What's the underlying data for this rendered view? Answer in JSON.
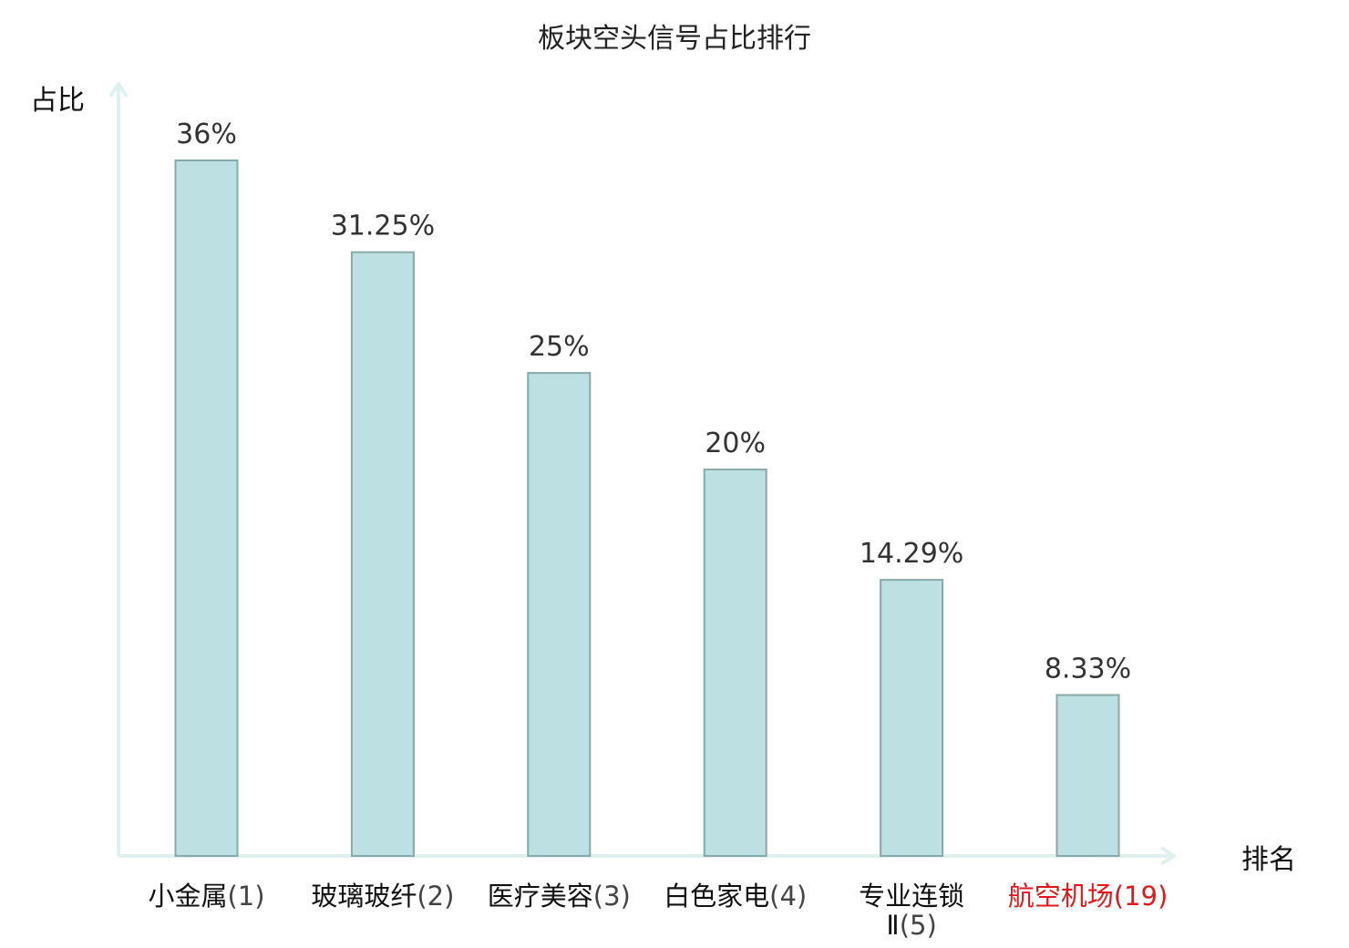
{
  "chart_data": {
    "type": "bar",
    "title": "板块空头信号占比排行",
    "ylabel": "占比",
    "xlabel": "排名",
    "ylim": [
      0,
      40
    ],
    "grid": false,
    "legend": "none",
    "categories": [
      {
        "name": "小金属",
        "rank": "(1)",
        "highlight": false
      },
      {
        "name": "玻璃玻纤",
        "rank": "(2)",
        "highlight": false
      },
      {
        "name": "医疗美容",
        "rank": "(3)",
        "highlight": false
      },
      {
        "name": "白色家电",
        "rank": "(4)",
        "highlight": false
      },
      {
        "name": "专业连锁",
        "name_line2": "Ⅱ",
        "rank": "(5)",
        "highlight": false
      },
      {
        "name": "航空机场",
        "rank": "(19)",
        "highlight": true
      }
    ],
    "values": [
      36,
      31.25,
      25,
      20,
      14.29,
      8.33
    ],
    "value_labels": [
      "36%",
      "31.25%",
      "25%",
      "20%",
      "14.29%",
      "8.33%"
    ]
  },
  "colors": {
    "bar_fill": "#bde0e2",
    "bar_stroke": "#88a8aa",
    "axis": "#dff1ee",
    "category_text": "#111111",
    "rank_text": "#444444",
    "highlight": "#e0191e",
    "value_text": "#333333"
  }
}
